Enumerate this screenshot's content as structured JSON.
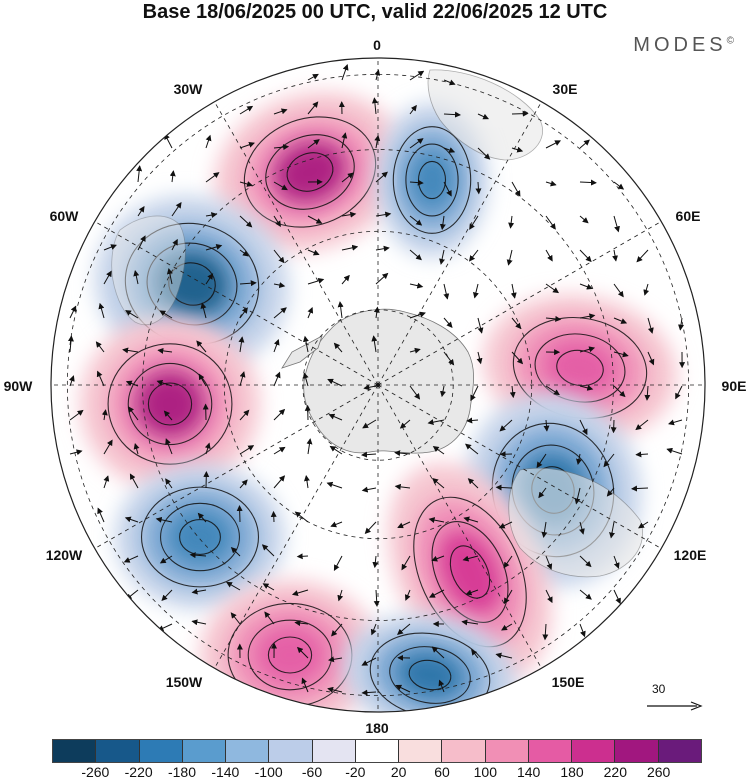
{
  "header": {
    "title": "Base 18/06/2025 00 UTC, valid 22/06/2025 12 UTC",
    "brand": "MODES",
    "brand_mark": "©"
  },
  "map": {
    "projection": "south-polar-stereographic",
    "longitude_labels": {
      "lon_0": "0",
      "lon_30e": "30E",
      "lon_60e": "60E",
      "lon_90e": "90E",
      "lon_120e": "120E",
      "lon_150e": "150E",
      "lon_180": "180",
      "lon_150w": "150W",
      "lon_120w": "120W",
      "lon_90w": "90W",
      "lon_60w": "60W",
      "lon_30w": "30W"
    },
    "reference_vector": {
      "label": "30"
    },
    "land_color": "#e8e8e8",
    "graticule": "dashed",
    "anomaly_centers": [
      {
        "name": "positive-30w",
        "value": 260,
        "color": "#aa1a80"
      },
      {
        "name": "negative-60w",
        "value": -220,
        "color": "#1f5f8b"
      },
      {
        "name": "negative-10e",
        "value": -180,
        "color": "#3f86ba"
      },
      {
        "name": "positive-90w",
        "value": 240,
        "color": "#aa1a80"
      },
      {
        "name": "positive-90e",
        "value": 140,
        "color": "#e45da6"
      },
      {
        "name": "negative-110e",
        "value": -200,
        "color": "#2b73a8"
      },
      {
        "name": "negative-120w",
        "value": -180,
        "color": "#3f86ba"
      },
      {
        "name": "positive-140e",
        "value": 180,
        "color": "#d63994"
      },
      {
        "name": "positive-160w",
        "value": 160,
        "color": "#e45da6"
      },
      {
        "name": "negative-165e",
        "value": -200,
        "color": "#2b73a8"
      }
    ]
  },
  "colorbar": {
    "colors": [
      "#0d3c5c",
      "#17588a",
      "#2d7bb5",
      "#5a9cce",
      "#8fb8df",
      "#bccde9",
      "#e4e4f2",
      "#ffffff",
      "#f9dede",
      "#f6bdca",
      "#f18fb5",
      "#e55ba4",
      "#cc2f8f",
      "#a1177f",
      "#6a1b7b"
    ],
    "tick_labels": [
      "-260",
      "-220",
      "-180",
      "-140",
      "-100",
      "-60",
      "-20",
      "20",
      "60",
      "100",
      "140",
      "180",
      "220",
      "260"
    ]
  }
}
